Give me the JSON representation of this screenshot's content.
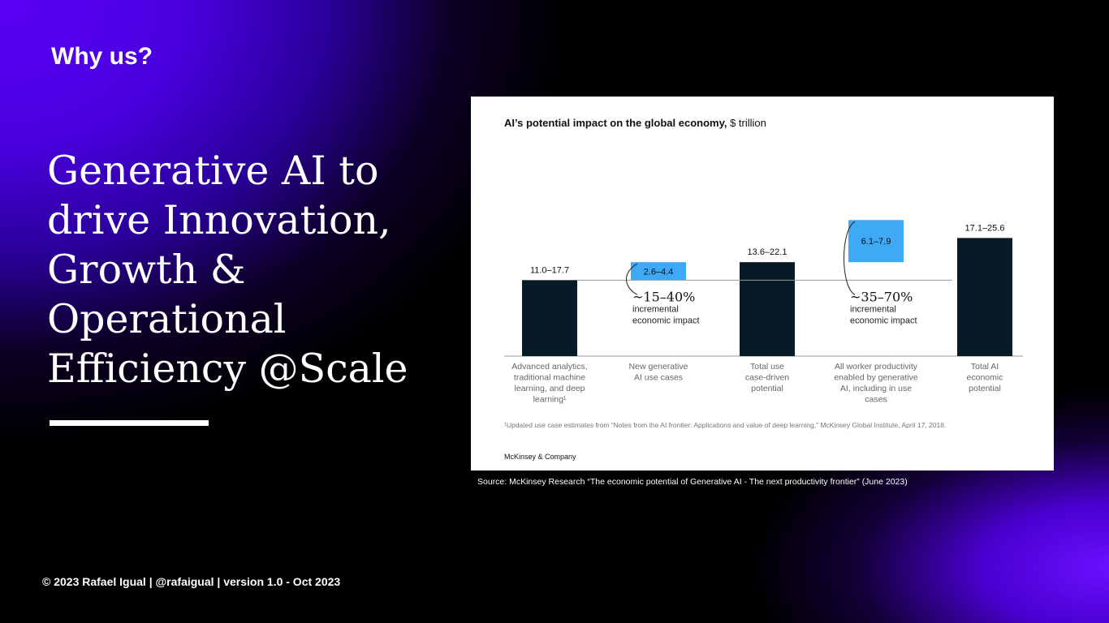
{
  "slide": {
    "eyebrow": "Why us?",
    "headline_lines": [
      "Generative AI to",
      "drive Innovation,",
      "Growth &",
      "Operational",
      "Efficiency @Scale"
    ],
    "footer": "© 2023 Rafael Igual | @rafaigual | version 1.0 - Oct 2023",
    "source": "Source: McKinsey Research “The economic potential of Generative AI - The next productivity frontier” (June 2023)"
  },
  "colors": {
    "dark_bar": "#071a26",
    "blue_bar": "#3fa9f5",
    "axis": "#999999"
  },
  "chart_data": {
    "type": "bar",
    "subtype": "waterfall",
    "title_bold": "AI’s potential impact on the global economy,",
    "title_unit": "$ trillion",
    "categories": [
      [
        "Advanced analytics,",
        "traditional machine",
        "learning, and deep",
        "learning¹"
      ],
      [
        "New generative",
        "AI use cases"
      ],
      [
        "Total use",
        "case-driven",
        "potential"
      ],
      [
        "All worker productivity",
        "enabled by generative",
        "AI, including in use",
        "cases"
      ],
      [
        "Total AI",
        "economic",
        "potential"
      ]
    ],
    "series": [
      {
        "name": "Advanced analytics, traditional ML and deep learning",
        "kind": "total",
        "low": 11.0,
        "high": 17.7,
        "label": "11.0–17.7"
      },
      {
        "name": "New generative AI use cases",
        "kind": "increment",
        "low": 2.6,
        "high": 4.4,
        "label": "2.6–4.4"
      },
      {
        "name": "Total use case-driven potential",
        "kind": "total",
        "low": 13.6,
        "high": 22.1,
        "label": "13.6–22.1"
      },
      {
        "name": "All worker productivity enabled by generative AI",
        "kind": "increment",
        "low": 6.1,
        "high": 7.9,
        "label": "6.1–7.9"
      },
      {
        "name": "Total AI economic potential",
        "kind": "total",
        "low": 17.1,
        "high": 25.6,
        "label": "17.1–25.6"
      }
    ],
    "annotations": [
      {
        "after_bar": 1,
        "pct": "~15–40%",
        "lines": [
          "incremental",
          "economic impact"
        ]
      },
      {
        "after_bar": 3,
        "pct": "~35–70%",
        "lines": [
          "incremental",
          "economic impact"
        ]
      }
    ],
    "footnote": "¹Updated use case estimates from “Notes from the AI frontier: Applications and value of deep learning,” McKinsey Global Institute, April 17, 2018.",
    "brand": "McKinsey & Company",
    "ylim": [
      0,
      25.6
    ]
  }
}
